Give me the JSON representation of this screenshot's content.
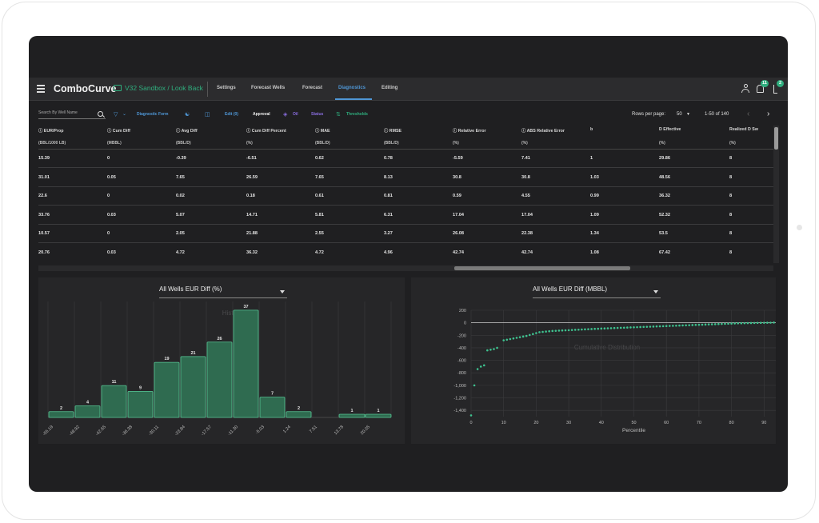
{
  "app": {
    "brand": "ComboCurve",
    "project_path": "V32 Sandbox / Look Back",
    "nav_tabs": [
      "Settings",
      "Forecast Wells",
      "Forecast",
      "Diagnostics",
      "Editing"
    ],
    "active_tab": "Diagnostics",
    "notifications_badge": "11",
    "tasks_badge": "2",
    "accent_color": "#2fae7e",
    "link_color": "#4f97d6"
  },
  "toolbar": {
    "search_placeholder": "Search By Well Name",
    "diagnostic_form": "Diagnostic Form",
    "edit_label": "Edit (0)",
    "approval": "Approval",
    "oil": "Oil",
    "status": "Status",
    "thresholds": "Thresholds",
    "rows_per_page_label": "Rows per page:",
    "rows_per_page_value": "50",
    "range": "1-50 of 140"
  },
  "table": {
    "columns": [
      {
        "label": "EUR/Prop",
        "unit": "(BBL/1000 LB)",
        "info": true
      },
      {
        "label": "Cum Diff",
        "unit": "(MBBL)",
        "info": true
      },
      {
        "label": "Avg Diff",
        "unit": "(BBL/D)",
        "info": true
      },
      {
        "label": "Cum Diff Percent",
        "unit": "(%)",
        "info": true
      },
      {
        "label": "MAE",
        "unit": "(BBL/D)",
        "info": true
      },
      {
        "label": "RMSE",
        "unit": "(BBL/D)",
        "info": true
      },
      {
        "label": "Relative Error",
        "unit": "(%)",
        "info": true
      },
      {
        "label": "ABS Relative Error",
        "unit": "(%)",
        "info": true
      },
      {
        "label": "b",
        "unit": "",
        "info": false
      },
      {
        "label": "D Effective",
        "unit": "(%)",
        "info": false
      },
      {
        "label": "Realized D Sw",
        "unit": "(%)",
        "info": false
      }
    ],
    "rows": [
      [
        "15.39",
        "0",
        "-0.39",
        "-6.51",
        "0.62",
        "0.78",
        "-5.59",
        "7.41",
        "1",
        "29.86",
        "8"
      ],
      [
        "31.01",
        "0.05",
        "7.65",
        "26.59",
        "7.65",
        "8.13",
        "30.8",
        "30.8",
        "1.03",
        "48.56",
        "8"
      ],
      [
        "22.6",
        "0",
        "0.02",
        "0.18",
        "0.61",
        "0.81",
        "0.59",
        "4.55",
        "0.99",
        "36.32",
        "8"
      ],
      [
        "33.76",
        "0.03",
        "5.07",
        "14.71",
        "5.81",
        "6.31",
        "17.04",
        "17.04",
        "1.09",
        "52.32",
        "8"
      ],
      [
        "10.57",
        "0",
        "2.05",
        "21.88",
        "2.55",
        "3.27",
        "26.08",
        "22.38",
        "1.34",
        "53.5",
        "8"
      ],
      [
        "20.76",
        "0.03",
        "4.72",
        "36.32",
        "4.72",
        "4.96",
        "42.74",
        "42.74",
        "1.08",
        "67.42",
        "8"
      ]
    ]
  },
  "histogram_panel": {
    "select_value": "All Wells EUR Diff (%)",
    "background_title": "Histogram"
  },
  "distribution_panel": {
    "select_value": "All Wells EUR Diff (MBBL)",
    "background_title": "Cumulative Distribution"
  },
  "chart_data": [
    {
      "type": "bar",
      "title": "Histogram",
      "categories": [
        "-55.19",
        "-48.92",
        "-42.65",
        "-36.38",
        "-30.11",
        "-23.84",
        "-17.57",
        "-11.30",
        "-5.03",
        "1.24",
        "7.51",
        "13.78",
        "20.05"
      ],
      "values": [
        2,
        4,
        11,
        9,
        19,
        21,
        26,
        37,
        7,
        2,
        0,
        1,
        1
      ],
      "ylim": [
        0,
        40
      ],
      "bar_color": "#2f6b50",
      "grid": true
    },
    {
      "type": "scatter",
      "title": "Cumulative Distribution",
      "xlabel": "Percentile",
      "ylabel": "",
      "xlim": [
        0,
        100
      ],
      "ylim": [
        -1500,
        200
      ],
      "x_ticks": [
        "0",
        "10",
        "20",
        "30",
        "40",
        "50",
        "60",
        "70",
        "80",
        "90",
        "100"
      ],
      "y_ticks": [
        "200",
        "0",
        "-200",
        "-400",
        "-600",
        "-800",
        "-1,000",
        "-1,200",
        "-1,400"
      ],
      "point_color": "#3ec28f",
      "grid": true,
      "x": [
        0,
        1,
        2,
        3,
        4,
        5,
        6,
        7,
        8,
        10,
        11,
        12,
        13,
        14,
        15,
        16,
        17,
        18,
        19,
        20,
        21,
        22,
        23,
        24,
        25,
        26,
        27,
        28,
        29,
        30,
        31,
        32,
        33,
        34,
        35,
        36,
        37,
        38,
        39,
        40,
        41,
        42,
        43,
        44,
        45,
        46,
        47,
        48,
        49,
        50,
        51,
        52,
        53,
        54,
        55,
        56,
        57,
        58,
        59,
        60,
        61,
        62,
        63,
        64,
        65,
        66,
        67,
        68,
        69,
        70,
        71,
        72,
        73,
        74,
        75,
        76,
        77,
        78,
        79,
        80,
        81,
        82,
        83,
        84,
        85,
        86,
        87,
        88,
        89,
        90,
        91,
        92,
        93,
        94,
        95,
        96,
        97,
        98,
        99
      ],
      "y": [
        -1480,
        -1000,
        -740,
        -700,
        -680,
        -440,
        -430,
        -420,
        -400,
        -280,
        -270,
        -260,
        -250,
        -240,
        -230,
        -220,
        -210,
        -195,
        -180,
        -165,
        -150,
        -145,
        -140,
        -135,
        -130,
        -128,
        -125,
        -122,
        -120,
        -118,
        -115,
        -112,
        -110,
        -107,
        -105,
        -102,
        -100,
        -97,
        -95,
        -92,
        -90,
        -88,
        -86,
        -84,
        -82,
        -80,
        -78,
        -76,
        -74,
        -72,
        -70,
        -68,
        -66,
        -64,
        -62,
        -60,
        -58,
        -56,
        -54,
        -52,
        -50,
        -48,
        -46,
        -44,
        -42,
        -40,
        -38,
        -36,
        -34,
        -32,
        -30,
        -28,
        -26,
        -24,
        -22,
        -20,
        -18,
        -16,
        -14,
        -12,
        -10,
        -8,
        -7,
        -6,
        -5,
        -4,
        -3,
        -2,
        -1,
        0,
        1,
        2,
        4,
        8,
        15,
        25,
        40,
        60,
        85
      ]
    }
  ]
}
